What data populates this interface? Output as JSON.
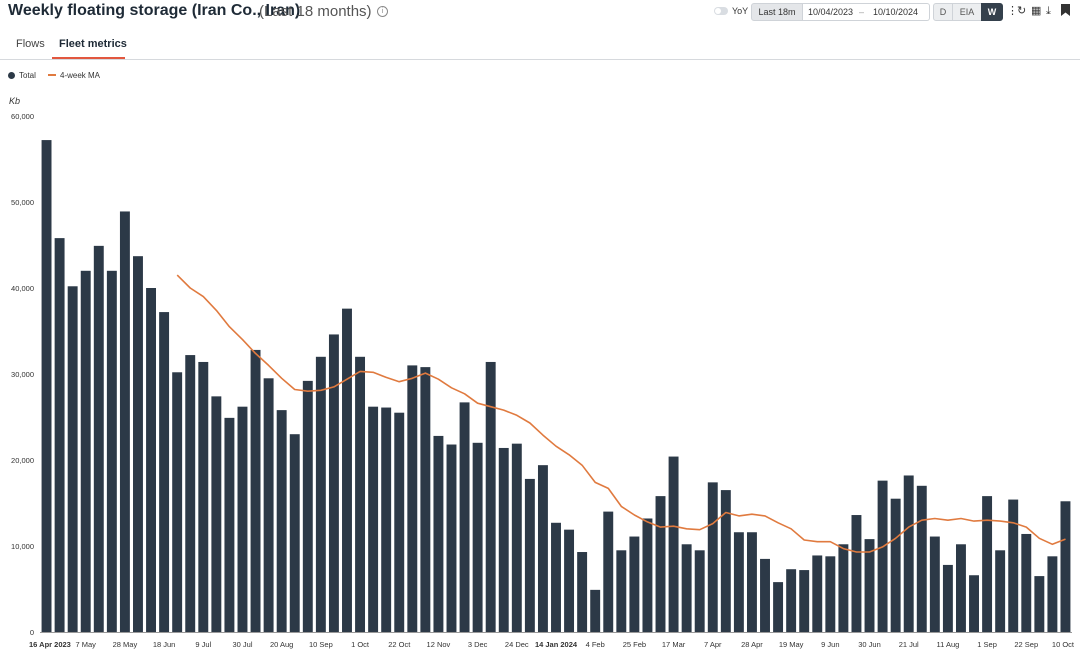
{
  "header": {
    "title": "Weekly floating storage (Iran Co., Iran)",
    "subtitle": "(Last 18 months)",
    "info_icon": "info-icon",
    "yoy_label": "YoY",
    "range_label": "Last 18m",
    "date_from": "10/04/2023",
    "date_sep": "–",
    "date_to": "10/10/2024",
    "freq_d": "D",
    "freq_eia": "EIA",
    "freq_w": "W",
    "tools": [
      "more-vertical-icon",
      "refresh-icon",
      "grid-icon",
      "download-icon",
      "bookmark-icon"
    ]
  },
  "tabs": [
    {
      "label": "Flows",
      "active": false
    },
    {
      "label": "Fleet metrics",
      "active": true
    }
  ],
  "legend": {
    "total": "Total",
    "ma": "4-week MA"
  },
  "unit": "Kb",
  "colors": {
    "bar": "#2c3947",
    "ma_line": "#e07a3f",
    "accent": "#e2573f"
  },
  "chart_data": {
    "type": "bar",
    "ylim": [
      0,
      60000
    ],
    "yticks": [
      "0",
      "10,000",
      "20,000",
      "30,000",
      "40,000",
      "50,000",
      "60,000"
    ],
    "xtick_labels": [
      "16 Apr 2023",
      "7 May",
      "28 May",
      "18 Jun",
      "9 Jul",
      "30 Jul",
      "20 Aug",
      "10 Sep",
      "1 Oct",
      "22 Oct",
      "12 Nov",
      "3 Dec",
      "24 Dec",
      "14 Jan 2024",
      "4 Feb",
      "25 Feb",
      "17 Mar",
      "7 Apr",
      "28 Apr",
      "19 May",
      "9 Jun",
      "30 Jun",
      "21 Jul",
      "11 Aug",
      "1 Sep",
      "22 Sep",
      "10 Oct"
    ],
    "bold_ticks": [
      "16 Apr 2023",
      "14 Jan 2024"
    ],
    "series": [
      {
        "name": "Total",
        "type": "bar",
        "values": [
          57200,
          45800,
          40200,
          42000,
          44900,
          42000,
          48900,
          43700,
          40000,
          37200,
          30200,
          32200,
          31400,
          27400,
          24900,
          26200,
          32800,
          29500,
          25800,
          23000,
          29200,
          32000,
          34600,
          37600,
          32000,
          26200,
          26100,
          25500,
          31000,
          30800,
          22800,
          21800,
          26700,
          22000,
          31400,
          21400,
          21900,
          17800,
          19400,
          12700,
          11900,
          9300,
          4900,
          14000,
          9500,
          11100,
          13200,
          15800,
          20400,
          10200,
          9500,
          17400,
          16500,
          11600,
          11600,
          8500,
          5800,
          7300,
          7200,
          8900,
          8800,
          10200,
          13600,
          10800,
          17600,
          15500,
          18200,
          17000,
          11100,
          7800,
          10200,
          6600,
          15800,
          9500,
          15400,
          11400,
          6500,
          8800,
          15200
        ]
      },
      {
        "name": "4-week MA",
        "type": "line",
        "values": [
          null,
          null,
          null,
          null,
          null,
          null,
          null,
          null,
          null,
          null,
          41500,
          40000,
          39000,
          37400,
          35500,
          34000,
          32400,
          31000,
          29500,
          28200,
          28000,
          28100,
          28500,
          29400,
          30300,
          30200,
          29600,
          29100,
          29500,
          30100,
          29400,
          28400,
          27700,
          26600,
          26200,
          25800,
          25200,
          24300,
          22900,
          21600,
          20600,
          19400,
          17400,
          16700,
          14600,
          13600,
          12800,
          12200,
          12300,
          12000,
          11900,
          12600,
          13900,
          13500,
          13700,
          13500,
          12700,
          12000,
          10700,
          10500,
          10500,
          9700,
          9300,
          9300,
          9900,
          10900,
          12200,
          13000,
          13200,
          13000,
          13200,
          12900,
          13000,
          12900,
          12700,
          12200,
          10900,
          10200,
          10800
        ]
      }
    ]
  }
}
